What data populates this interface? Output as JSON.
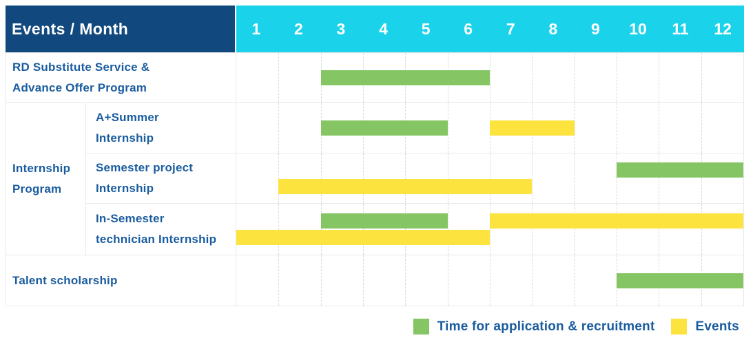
{
  "header": {
    "title": "Events / Month",
    "months": [
      "1",
      "2",
      "3",
      "4",
      "5",
      "6",
      "7",
      "8",
      "9",
      "10",
      "11",
      "12"
    ]
  },
  "group": {
    "label": "Internship Program",
    "lines": [
      "Internship",
      "Program"
    ]
  },
  "colors": {
    "header_bg": "#11497E",
    "months_bg": "#1AD2EA",
    "header_text": "#FFFFFF",
    "label_text": "#1A5C9F",
    "bar_green": "#85C563",
    "bar_yellow": "#FDE33E",
    "grid_solid": "#E9E9E9",
    "grid_dashed": "#DADADA"
  },
  "chart_data": {
    "type": "gantt",
    "x_unit": "month",
    "x_range": [
      1,
      12
    ],
    "x_ticks": [
      "1",
      "2",
      "3",
      "4",
      "5",
      "6",
      "7",
      "8",
      "9",
      "10",
      "11",
      "12"
    ],
    "grid": "vertical-dashed",
    "legend_position": "bottom-right",
    "legend": [
      "Time for application & recruitment",
      "Events"
    ],
    "series_colors": {
      "green": "#85C563",
      "yellow": "#FDE33E"
    },
    "rows": [
      {
        "label": "RD Substitute Service & Advance Offer Program",
        "lines": [
          "RD Substitute Service &",
          "Advance Offer Program"
        ],
        "group": null,
        "bars": [
          {
            "series": "Time for application & recruitment",
            "color_key": "green",
            "start_month": 3,
            "end_month": 6,
            "lane": 0
          }
        ]
      },
      {
        "label": "A+Summer Internship",
        "lines": [
          "A+Summer",
          "Internship"
        ],
        "group": "Internship Program",
        "bars": [
          {
            "series": "Time for application & recruitment",
            "color_key": "green",
            "start_month": 3,
            "end_month": 5,
            "lane": 0
          },
          {
            "series": "Events",
            "color_key": "yellow",
            "start_month": 7,
            "end_month": 8,
            "lane": 0
          }
        ]
      },
      {
        "label": "Semester project Internship",
        "lines": [
          "Semester project",
          "Internship"
        ],
        "group": "Internship Program",
        "bars": [
          {
            "series": "Time for application & recruitment",
            "color_key": "green",
            "start_month": 10,
            "end_month": 12,
            "lane": 0
          },
          {
            "series": "Events",
            "color_key": "yellow",
            "start_month": 2,
            "end_month": 7,
            "lane": 1
          }
        ]
      },
      {
        "label": "In-Semester technician Internship",
        "lines": [
          "In-Semester",
          "technician Internship"
        ],
        "group": "Internship Program",
        "bars": [
          {
            "series": "Time for application & recruitment",
            "color_key": "green",
            "start_month": 3,
            "end_month": 5,
            "lane": 0
          },
          {
            "series": "Events",
            "color_key": "yellow",
            "start_month": 7,
            "end_month": 12,
            "lane": 0
          },
          {
            "series": "Events",
            "color_key": "yellow",
            "start_month": 1,
            "end_month": 6,
            "lane": 1
          }
        ]
      },
      {
        "label": "Talent scholarship",
        "lines": [
          "Talent scholarship"
        ],
        "group": null,
        "bars": [
          {
            "series": "Time for application & recruitment",
            "color_key": "green",
            "start_month": 10,
            "end_month": 12,
            "lane": 0
          }
        ]
      }
    ]
  }
}
